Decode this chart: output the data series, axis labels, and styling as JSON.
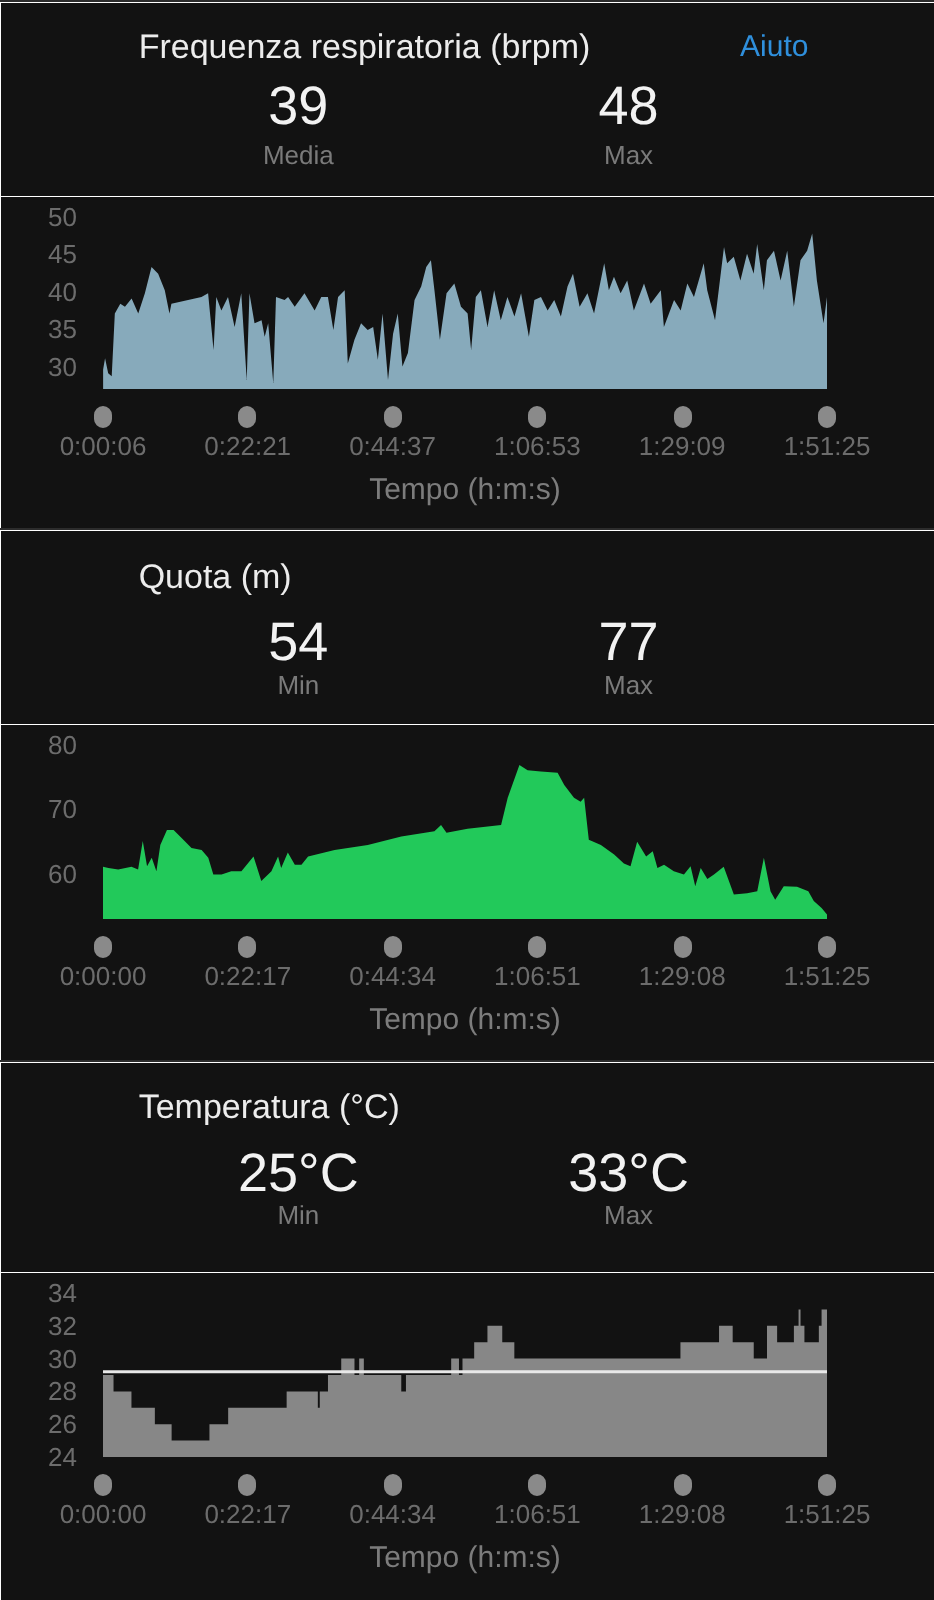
{
  "chart_data": [
    {
      "type": "area",
      "title": "Frequenza respiratoria (brpm)",
      "xlabel": "Tempo (h:m:s)",
      "annotations": [
        "39",
        "Media",
        "48",
        "Max",
        "Aiuto"
      ],
      "color": "#87aabb",
      "x": [
        0.002,
        0.007,
        0.015,
        0.024,
        0.032,
        0.046,
        0.058,
        0.075,
        0.092,
        0.109,
        0.126,
        0.143,
        0.16,
        0.172,
        0.177,
        0.254,
        0.271,
        0.285,
        0.292,
        0.305,
        0.322,
        0.339,
        0.356,
        0.37,
        0.377,
        0.39,
        0.408,
        0.416,
        0.425,
        0.438,
        0.445,
        0.467,
        0.476,
        0.493,
        0.518,
        0.544,
        0.561,
        0.578,
        0.592,
        0.604,
        0.621,
        0.629,
        0.646,
        0.663,
        0.68,
        0.694,
        0.706,
        0.718,
        0.732,
        0.745,
        0.757,
        0.769,
        0.783,
        0.8,
        0.817,
        0.83,
        0.842,
        0.851,
        0.865,
        0.882,
        0.902,
        0.919,
        0.936,
        0.945,
        0.957,
        0.97,
        0.987,
        1.004,
        1.021,
        1.038,
        1.056,
        1.073,
        1.093,
        1.107,
        1.124,
        1.141,
        1.158,
        1.175,
        1.192,
        1.206,
        1.223,
        1.243,
        1.26,
        1.286,
        1.298,
        1.311,
        1.328,
        1.345,
        1.362,
        1.388,
        1.405,
        1.431,
        1.439,
        1.465,
        1.482,
        1.499,
        1.516,
        1.541,
        1.55,
        1.57,
        1.593,
        1.601,
        1.618,
        1.635,
        1.652,
        1.669,
        1.678,
        1.695,
        1.703,
        1.721,
        1.738,
        1.755,
        1.772,
        1.789,
        1.806,
        1.819,
        1.831,
        1.848,
        1.8569
      ],
      "values": [
        29.6,
        31.1,
        29.1,
        28.7,
        37.1,
        38.4,
        38.0,
        39.1,
        37.1,
        39.8,
        43.3,
        42.4,
        40.2,
        37.1,
        38.4,
        39.3,
        39.8,
        32.2,
        39.3,
        37.5,
        39.3,
        35.3,
        39.8,
        28.2,
        39.8,
        35.8,
        36.2,
        34.0,
        35.8,
        27.8,
        39.3,
        38.9,
        39.3,
        38.0,
        39.8,
        37.5,
        39.3,
        39.3,
        34.9,
        39.3,
        40.2,
        30.4,
        33.6,
        35.8,
        34.9,
        35.3,
        30.9,
        37.1,
        28.2,
        34.4,
        37.1,
        30.0,
        31.8,
        38.9,
        40.7,
        43.3,
        44.2,
        40.2,
        33.6,
        39.8,
        41.1,
        38.0,
        37.1,
        32.2,
        39.3,
        40.2,
        35.3,
        40.2,
        36.2,
        39.3,
        36.7,
        39.8,
        34.0,
        38.9,
        39.3,
        37.5,
        38.9,
        36.7,
        40.7,
        42.4,
        38.0,
        39.8,
        37.1,
        43.8,
        40.2,
        42.0,
        39.8,
        41.5,
        37.5,
        41.1,
        38.4,
        40.2,
        35.3,
        38.9,
        37.5,
        41.1,
        39.3,
        43.8,
        40.2,
        36.2,
        46.0,
        43.8,
        44.7,
        41.5,
        45.1,
        42.4,
        46.4,
        40.2,
        44.2,
        45.5,
        41.5,
        45.5,
        38.0,
        44.2,
        45.5,
        47.8,
        41.5,
        35.8,
        39.3
      ],
      "xlim": [
        0.0017,
        1.8569
      ],
      "ylim": [
        27,
        50
      ],
      "xticks": [
        {
          "value": 0.0017,
          "label": "0:00:06"
        },
        {
          "value": 0.3725,
          "label": "0:22:21"
        },
        {
          "value": 0.7436,
          "label": "0:44:37"
        },
        {
          "value": 1.1147,
          "label": "1:06:53"
        },
        {
          "value": 1.4858,
          "label": "1:29:09"
        },
        {
          "value": 1.8569,
          "label": "1:51:25"
        }
      ],
      "yticks": [
        30,
        35,
        40,
        45,
        50
      ]
    },
    {
      "type": "area",
      "title": "Quota (m)",
      "xlabel": "Tempo (h:m:s)",
      "annotations": [
        "54",
        "Min",
        "77",
        "Max"
      ],
      "color": "#22c95a",
      "x": [
        0,
        0.014,
        0.039,
        0.073,
        0.09,
        0.102,
        0.113,
        0.125,
        0.137,
        0.147,
        0.164,
        0.181,
        0.201,
        0.227,
        0.253,
        0.27,
        0.283,
        0.304,
        0.329,
        0.355,
        0.386,
        0.406,
        0.432,
        0.449,
        0.457,
        0.474,
        0.492,
        0.509,
        0.526,
        0.594,
        0.679,
        0.765,
        0.85,
        0.867,
        0.881,
        0.935,
        1.021,
        1.038,
        1.068,
        1.089,
        1.123,
        1.166,
        1.183,
        1.208,
        1.225,
        1.234,
        1.246,
        1.277,
        1.311,
        1.336,
        1.353,
        1.37,
        1.393,
        1.41,
        1.422,
        1.439,
        1.464,
        1.49,
        1.507,
        1.519,
        1.533,
        1.55,
        1.567,
        1.592,
        1.618,
        1.652,
        1.678,
        1.695,
        1.712,
        1.724,
        1.746,
        1.78,
        1.809,
        1.823,
        1.843,
        1.8569
      ],
      "values": [
        61.1,
        60.9,
        60.7,
        61.1,
        60.7,
        65.1,
        61.2,
        62.5,
        60.4,
        64.5,
        66.8,
        66.8,
        65.6,
        64.0,
        63.7,
        62.5,
        59.9,
        59.9,
        60.4,
        60.4,
        62.7,
        58.9,
        60.4,
        62.7,
        60.9,
        63.3,
        61.4,
        61.4,
        62.7,
        63.7,
        64.5,
        65.8,
        66.6,
        67.6,
        66.4,
        67.0,
        67.6,
        71.8,
        76.9,
        76.1,
        75.9,
        75.7,
        73.8,
        71.8,
        71.2,
        71.8,
        65.3,
        64.5,
        63.0,
        61.6,
        61.2,
        65.0,
        62.7,
        63.5,
        60.9,
        61.4,
        60.4,
        59.9,
        61.2,
        58.1,
        60.9,
        59.2,
        59.9,
        61.1,
        56.8,
        57.0,
        57.3,
        62.5,
        57.3,
        56.0,
        58.1,
        58.0,
        57.3,
        55.8,
        54.7,
        53.7
      ],
      "xlim": [
        0,
        1.8569
      ],
      "ylim": [
        53,
        80
      ],
      "xticks": [
        {
          "value": 0,
          "label": "0:00:00"
        },
        {
          "value": 0.3714,
          "label": "0:22:17"
        },
        {
          "value": 0.7428,
          "label": "0:44:34"
        },
        {
          "value": 1.1142,
          "label": "1:06:51"
        },
        {
          "value": 1.4856,
          "label": "1:29:08"
        },
        {
          "value": 1.8569,
          "label": "1:51:25"
        }
      ],
      "yticks": [
        60,
        70,
        80
      ]
    },
    {
      "type": "area",
      "title": "Temperatura (°C)",
      "xlabel": "Tempo (h:m:s)",
      "annotations": [
        "25°C",
        "Min",
        "33°C",
        "Max"
      ],
      "color": "#878787",
      "x": [
        0,
        0.027,
        0.027,
        0.073,
        0.073,
        0.133,
        0.133,
        0.176,
        0.176,
        0.273,
        0.273,
        0.321,
        0.321,
        0.471,
        0.471,
        0.551,
        0.551,
        0.556,
        0.556,
        0.577,
        0.577,
        0.611,
        0.611,
        0.645,
        0.645,
        0.657,
        0.657,
        0.669,
        0.669,
        0.765,
        0.765,
        0.777,
        0.777,
        0.893,
        0.893,
        0.913,
        0.913,
        0.922,
        0.922,
        0.952,
        0.952,
        0.986,
        0.986,
        1.024,
        1.024,
        1.055,
        1.055,
        1.481,
        1.481,
        1.58,
        1.58,
        1.615,
        1.615,
        1.669,
        1.669,
        1.703,
        1.703,
        1.729,
        1.729,
        1.772,
        1.772,
        1.784,
        1.784,
        1.789,
        1.789,
        1.799,
        1.799,
        1.836,
        1.836,
        1.843,
        1.843,
        1.8569
      ],
      "values": [
        29,
        29,
        28,
        28,
        27,
        27,
        26,
        26,
        25,
        25,
        26,
        26,
        27,
        27,
        28,
        28,
        27,
        27,
        28,
        28,
        29,
        29,
        30,
        30,
        29,
        29,
        30,
        30,
        29,
        29,
        28,
        28,
        29,
        29,
        30,
        30,
        29,
        29,
        30,
        30,
        31,
        31,
        32,
        32,
        31,
        31,
        30,
        30,
        31,
        31,
        32,
        32,
        31,
        31,
        30,
        30,
        32,
        32,
        31,
        31,
        32,
        32,
        33,
        33,
        32,
        32,
        31,
        31,
        32,
        32,
        33,
        33
      ],
      "xlim": [
        0,
        1.8569
      ],
      "ylim": [
        24,
        34
      ],
      "xticks": [
        {
          "value": 0,
          "label": "0:00:00"
        },
        {
          "value": 0.3714,
          "label": "0:22:17"
        },
        {
          "value": 0.7428,
          "label": "0:44:34"
        },
        {
          "value": 1.1142,
          "label": "1:06:51"
        },
        {
          "value": 1.4856,
          "label": "1:29:08"
        },
        {
          "value": 1.8569,
          "label": "1:51:25"
        }
      ],
      "yticks": [
        24,
        26,
        28,
        30,
        32,
        34
      ],
      "ref_lines": [
        {
          "axis": "y",
          "value": 29.2,
          "color": "#e8e8e8"
        }
      ]
    }
  ]
}
